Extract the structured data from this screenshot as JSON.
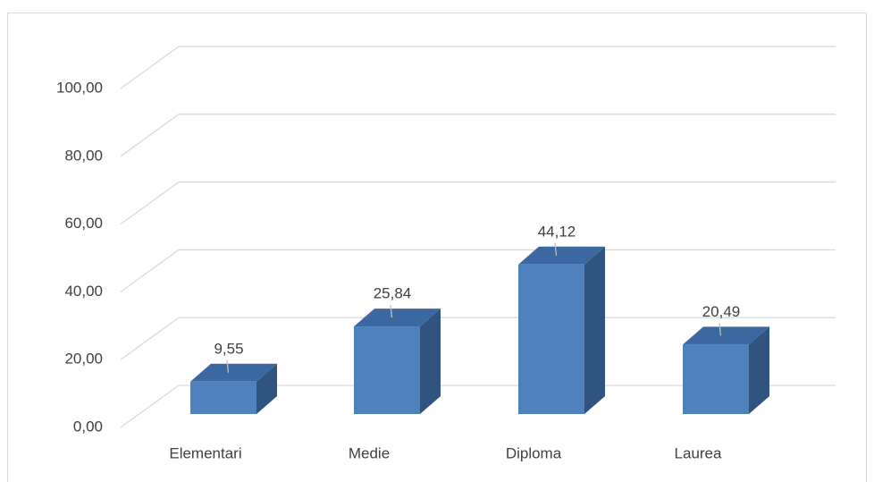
{
  "chart_data": {
    "type": "bar3d",
    "categories": [
      "Elementari",
      "Medie",
      "Diploma",
      "Laurea"
    ],
    "values": [
      9.55,
      25.84,
      44.12,
      20.49
    ],
    "value_labels": [
      "9,55",
      "25,84",
      "44,12",
      "20,49"
    ],
    "color": "#4f81bd",
    "ylim": [
      0,
      100
    ],
    "yticks": [
      {
        "value": 0,
        "label": "0,00"
      },
      {
        "value": 20,
        "label": "20,00"
      },
      {
        "value": 40,
        "label": "40,00"
      },
      {
        "value": 60,
        "label": "60,00"
      },
      {
        "value": 80,
        "label": "80,00"
      },
      {
        "value": 100,
        "label": "100,00"
      }
    ],
    "grid": true
  }
}
